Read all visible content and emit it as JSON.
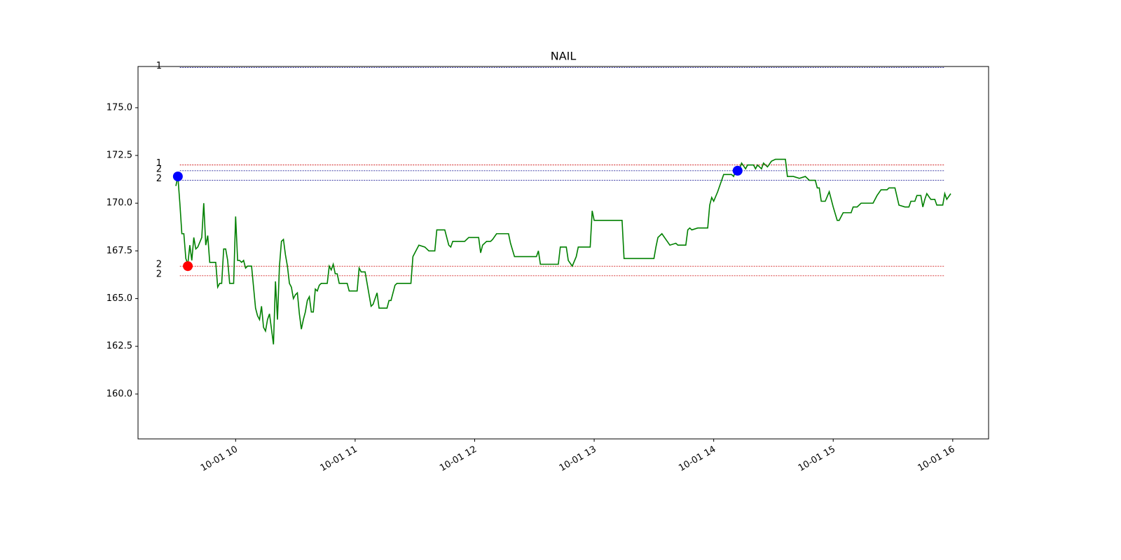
{
  "chart_data": {
    "type": "line",
    "title": "NAIL",
    "xlim": [
      "10-01 09:11",
      "10-01 16:18"
    ],
    "ylim": [
      157.65,
      177.16
    ],
    "xticks": [
      {
        "value": "10-01 10:00",
        "label": "10-01 10"
      },
      {
        "value": "10-01 11:00",
        "label": "10-01 11"
      },
      {
        "value": "10-01 12:00",
        "label": "10-01 12"
      },
      {
        "value": "10-01 13:00",
        "label": "10-01 13"
      },
      {
        "value": "10-01 14:00",
        "label": "10-01 14"
      },
      {
        "value": "10-01 15:00",
        "label": "10-01 15"
      },
      {
        "value": "10-01 16:00",
        "label": "10-01 16"
      }
    ],
    "yticks": [
      {
        "value": 160,
        "label": "160.0"
      },
      162.5,
      {
        "value": 165,
        "label": "165.0"
      },
      167.5,
      {
        "value": 170,
        "label": "170.0"
      },
      172.5,
      {
        "value": 175,
        "label": "175.0"
      }
    ],
    "grid": false,
    "series": [
      {
        "color": "#008000",
        "x": [
          "10-01 09:30",
          "10-01 09:31",
          "10-01 09:32",
          "10-01 09:33",
          "10-01 09:34",
          "10-01 09:35",
          "10-01 09:36",
          "10-01 09:37",
          "10-01 09:38",
          "10-01 09:39",
          "10-01 09:40",
          "10-01 09:41",
          "10-01 09:43",
          "10-01 09:44",
          "10-01 09:45",
          "10-01 09:46",
          "10-01 09:47",
          "10-01 09:50",
          "10-01 09:51",
          "10-01 09:52",
          "10-01 09:53",
          "10-01 09:54",
          "10-01 09:55",
          "10-01 09:56",
          "10-01 09:57",
          "10-01 09:59",
          "10-01 10:00",
          "10-01 10:01",
          "10-01 10:02",
          "10-01 10:03",
          "10-01 10:04",
          "10-01 10:05",
          "10-01 10:06",
          "10-01 10:08",
          "10-01 10:10",
          "10-01 10:11",
          "10-01 10:12",
          "10-01 10:13",
          "10-01 10:14",
          "10-01 10:15",
          "10-01 10:16",
          "10-01 10:17",
          "10-01 10:19",
          "10-01 10:20",
          "10-01 10:21",
          "10-01 10:22",
          "10-01 10:23",
          "10-01 10:24",
          "10-01 10:25",
          "10-01 10:26",
          "10-01 10:27",
          "10-01 10:28",
          "10-01 10:29",
          "10-01 10:30",
          "10-01 10:31",
          "10-01 10:32",
          "10-01 10:33",
          "10-01 10:34",
          "10-01 10:35",
          "10-01 10:36",
          "10-01 10:37",
          "10-01 10:38",
          "10-01 10:39",
          "10-01 10:40",
          "10-01 10:41",
          "10-01 10:42",
          "10-01 10:43",
          "10-01 10:46",
          "10-01 10:47",
          "10-01 10:48",
          "10-01 10:49",
          "10-01 10:50",
          "10-01 10:51",
          "10-01 10:52",
          "10-01 10:56",
          "10-01 10:57",
          "10-01 11:01",
          "10-01 11:02",
          "10-01 11:03",
          "10-01 11:05",
          "10-01 11:08",
          "10-01 11:09",
          "10-01 11:11",
          "10-01 11:12",
          "10-01 11:16",
          "10-01 11:17",
          "10-01 11:18",
          "10-01 11:20",
          "10-01 11:21",
          "10-01 11:28",
          "10-01 11:29",
          "10-01 11:30",
          "10-01 11:32",
          "10-01 11:35",
          "10-01 11:36",
          "10-01 11:37",
          "10-01 11:40",
          "10-01 11:41",
          "10-01 11:45",
          "10-01 11:47",
          "10-01 11:48",
          "10-01 11:49",
          "10-01 11:55",
          "10-01 11:57",
          "10-01 12:02",
          "10-01 12:03",
          "10-01 12:04",
          "10-01 12:06",
          "10-01 12:08",
          "10-01 12:09",
          "10-01 12:11",
          "10-01 12:17",
          "10-01 12:18",
          "10-01 12:20",
          "10-01 12:31",
          "10-01 12:32",
          "10-01 12:33",
          "10-01 12:42",
          "10-01 12:43",
          "10-01 12:46",
          "10-01 12:47",
          "10-01 12:49",
          "10-01 12:51",
          "10-01 12:52",
          "10-01 12:58",
          "10-01 12:59",
          "10-01 13:00",
          "10-01 13:14",
          "10-01 13:15",
          "10-01 13:30",
          "10-01 13:31",
          "10-01 13:32",
          "10-01 13:34",
          "10-01 13:36",
          "10-01 13:38",
          "10-01 13:41",
          "10-01 13:42",
          "10-01 13:46",
          "10-01 13:47",
          "10-01 13:48",
          "10-01 13:49",
          "10-01 13:52",
          "10-01 13:57",
          "10-01 13:58",
          "10-01 13:59",
          "10-01 14:00",
          "10-01 14:02",
          "10-01 14:04",
          "10-01 14:05",
          "10-01 14:09",
          "10-01 14:10",
          "10-01 14:11",
          "10-01 14:13",
          "10-01 14:14",
          "10-01 14:16",
          "10-01 14:17",
          "10-01 14:20",
          "10-01 14:21",
          "10-01 14:22",
          "10-01 14:24",
          "10-01 14:25",
          "10-01 14:27",
          "10-01 14:29",
          "10-01 14:31",
          "10-01 14:36",
          "10-01 14:37",
          "10-01 14:40",
          "10-01 14:43",
          "10-01 14:46",
          "10-01 14:48",
          "10-01 14:51",
          "10-01 14:52",
          "10-01 14:53",
          "10-01 14:54",
          "10-01 14:56",
          "10-01 14:58",
          "10-01 15:00",
          "10-01 15:02",
          "10-01 15:03",
          "10-01 15:05",
          "10-01 15:09",
          "10-01 15:10",
          "10-01 15:12",
          "10-01 15:14",
          "10-01 15:20",
          "10-01 15:22",
          "10-01 15:24",
          "10-01 15:27",
          "10-01 15:28",
          "10-01 15:31",
          "10-01 15:33",
          "10-01 15:36",
          "10-01 15:38",
          "10-01 15:39",
          "10-01 15:41",
          "10-01 15:42",
          "10-01 15:44",
          "10-01 15:45",
          "10-01 15:46",
          "10-01 15:47",
          "10-01 15:49",
          "10-01 15:51",
          "10-01 15:52",
          "10-01 15:54",
          "10-01 15:55",
          "10-01 15:56",
          "10-01 15:57",
          "10-01 15:59"
        ],
        "values": [
          170.9,
          171.4,
          170.0,
          168.4,
          168.4,
          167.1,
          166.8,
          167.8,
          167.0,
          168.2,
          167.6,
          167.7,
          168.2,
          170.0,
          167.8,
          168.3,
          166.9,
          166.9,
          165.6,
          165.8,
          165.8,
          167.6,
          167.6,
          167.0,
          165.8,
          165.8,
          169.3,
          167.0,
          167.0,
          166.9,
          167.0,
          166.6,
          166.7,
          166.7,
          164.5,
          164.1,
          163.9,
          164.6,
          163.5,
          163.3,
          163.9,
          164.2,
          162.6,
          165.9,
          163.9,
          166.7,
          168.0,
          168.1,
          167.3,
          166.7,
          165.8,
          165.6,
          165.0,
          165.2,
          165.3,
          164.2,
          163.4,
          163.9,
          164.3,
          164.9,
          165.1,
          164.3,
          164.3,
          165.5,
          165.4,
          165.7,
          165.8,
          165.8,
          166.7,
          166.5,
          166.8,
          166.3,
          166.3,
          165.8,
          165.8,
          165.4,
          165.4,
          166.6,
          166.4,
          166.4,
          164.6,
          164.7,
          165.3,
          164.5,
          164.5,
          164.9,
          164.9,
          165.7,
          165.8,
          165.8,
          167.2,
          167.4,
          167.8,
          167.7,
          167.6,
          167.5,
          167.5,
          168.6,
          168.6,
          167.8,
          167.7,
          168.0,
          168.0,
          168.2,
          168.2,
          167.4,
          167.8,
          168.0,
          168.0,
          168.1,
          168.4,
          168.4,
          167.9,
          167.2,
          167.2,
          167.5,
          166.8,
          166.8,
          167.7,
          167.7,
          167.0,
          166.7,
          167.2,
          167.7,
          167.7,
          169.6,
          169.1,
          169.1,
          167.1,
          167.1,
          167.7,
          168.2,
          168.4,
          168.1,
          167.8,
          167.9,
          167.8,
          167.8,
          168.6,
          168.7,
          168.6,
          168.7,
          168.7,
          169.9,
          170.3,
          170.1,
          170.6,
          171.2,
          171.5,
          171.5,
          171.4,
          171.7,
          171.8,
          172.1,
          171.8,
          172.0,
          172.0,
          171.8,
          172.0,
          171.8,
          172.1,
          171.9,
          172.2,
          172.3,
          172.3,
          171.4,
          171.4,
          171.3,
          171.4,
          171.2,
          171.2,
          170.8,
          170.8,
          170.1,
          170.1,
          170.6,
          169.8,
          169.1,
          169.1,
          169.5,
          169.5,
          169.8,
          169.8,
          170.0,
          170.0,
          170.4,
          170.7,
          170.7,
          170.8,
          170.8,
          169.9,
          169.8,
          169.8,
          170.1,
          170.1,
          170.4,
          170.4,
          169.8,
          170.2,
          170.5,
          170.2,
          170.2,
          169.9,
          169.9,
          169.9,
          170.5,
          170.2,
          170.5
        ]
      }
    ],
    "hlines": [
      {
        "label": "1",
        "value": 177.1,
        "color": "#00008b",
        "xrange": [
          "10-01 09:32",
          "10-01 15:56"
        ]
      },
      {
        "label": "1",
        "value": 172.0,
        "color": "#cc0000",
        "xrange": [
          "10-01 09:32",
          "10-01 15:56"
        ]
      },
      {
        "label": "2",
        "value": 171.7,
        "color": "#00008b",
        "xrange": [
          "10-01 09:32",
          "10-01 15:56"
        ]
      },
      {
        "label": "2",
        "value": 171.2,
        "color": "#00008b",
        "xrange": [
          "10-01 09:32",
          "10-01 15:56"
        ]
      },
      {
        "label": "2",
        "value": 166.7,
        "color": "#cc0000",
        "xrange": [
          "10-01 09:32",
          "10-01 15:56"
        ]
      },
      {
        "label": "2",
        "value": 166.2,
        "color": "#cc0000",
        "xrange": [
          "10-01 09:32",
          "10-01 15:56"
        ]
      }
    ],
    "markers": [
      {
        "x": "10-01 09:31",
        "value": 171.4,
        "color": "#0000ff"
      },
      {
        "x": "10-01 09:36",
        "value": 166.7,
        "color": "#ff0000"
      },
      {
        "x": "10-01 14:12",
        "value": 171.7,
        "color": "#0000ff"
      }
    ]
  }
}
